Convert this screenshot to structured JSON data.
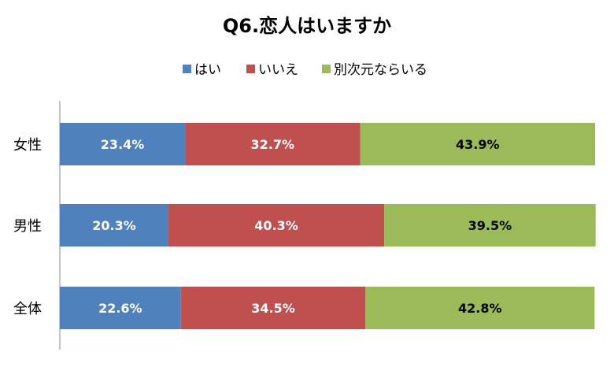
{
  "chart_data": {
    "type": "bar",
    "orientation": "horizontal",
    "stacked": "100%",
    "title": "Q6.恋人はいますか",
    "categories": [
      "女性",
      "男性",
      "全体"
    ],
    "series": [
      {
        "name": "はい",
        "values": [
          23.4,
          20.3,
          22.6
        ],
        "labels": [
          "23.4%",
          "20.3%",
          "22.6%"
        ],
        "color": "#4F81BD",
        "label_color": "#ffffff"
      },
      {
        "name": "いいえ",
        "values": [
          32.7,
          40.3,
          34.5
        ],
        "labels": [
          "32.7%",
          "40.3%",
          "34.5%"
        ],
        "color": "#C0504D",
        "label_color": "#ffffff"
      },
      {
        "name": "別次元ならいる",
        "values": [
          43.9,
          39.5,
          42.8
        ],
        "labels": [
          "43.9%",
          "39.5%",
          "42.8%"
        ],
        "color": "#9BBB59",
        "label_color": "#000000"
      }
    ],
    "xlim": [
      0,
      100
    ],
    "legend_position": "top",
    "grid": false
  }
}
